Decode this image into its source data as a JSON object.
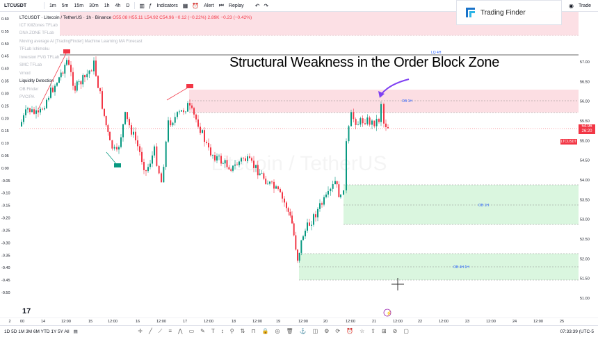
{
  "toolbar": {
    "symbol": "LTCUSDT",
    "timeframes": [
      "1m",
      "5m",
      "15m",
      "30m",
      "1h",
      "4h",
      "D"
    ],
    "indicators_label": "Indicators",
    "alert_label": "Alert",
    "replay_label": "Replay",
    "trade_label": "Trade"
  },
  "brand": {
    "name": "Trading Finder"
  },
  "legend": {
    "title": "LTCUSDT · Litecoin / TetherUS · 1h · Binance",
    "ohlc": "O55.08 H55.11 L54.92 C54.96 −0.12 (−0.22%)",
    "vol": "2.89K −0.23 (−0.42%)",
    "indicators": [
      {
        "label": "ICT KillZones TFLab",
        "on": false
      },
      {
        "label": "DNA ZONE TFLab",
        "on": false
      },
      {
        "label": "Moving average AI [TradingFinder] Machine Learning MA Forecast",
        "on": false
      },
      {
        "label": "TFLab Ichimoku",
        "on": false
      },
      {
        "label": "Inversion FVG TFLab",
        "on": false
      },
      {
        "label": "SMC TFLab",
        "on": false
      },
      {
        "label": "Vmod",
        "on": false
      },
      {
        "label": "Liquidity Detection",
        "on": true
      },
      {
        "label": "OB Finder",
        "on": false
      },
      {
        "label": "PVC/PA",
        "on": false
      }
    ]
  },
  "annotation": "Structural Weakness in the Order Block Zone",
  "watermark": "Litecoin / TetherUS",
  "zones": {
    "liq": "LQ 4H",
    "ob1": "OB 1H",
    "ob2": "OB 1H",
    "ob3": "OB 4H 1H"
  },
  "chart_data": {
    "type": "candlestick",
    "left_axis": {
      "min": -0.5,
      "max": 0.6,
      "ticks": [
        "0.60",
        "0.55",
        "0.50",
        "0.45",
        "0.40",
        "0.35",
        "0.30",
        "0.25",
        "0.20",
        "0.15",
        "0.10",
        "0.05",
        "0.00",
        "-0.05",
        "-0.10",
        "-0.15",
        "-0.20",
        "-0.25",
        "-0.30",
        "-0.35",
        "-0.40",
        "-0.45",
        "-0.50"
      ]
    },
    "right_axis": {
      "min": 51.0,
      "max": 57.0,
      "ticks": [
        "57.00",
        "56.50",
        "56.00",
        "55.50",
        "55.00",
        "54.50",
        "54.00",
        "53.50",
        "53.00",
        "52.50",
        "52.00",
        "51.50",
        "51.00"
      ]
    },
    "x_ticks": [
      "2",
      "00",
      "14",
      "12:00",
      "15",
      "12:00",
      "16",
      "12:00",
      "17",
      "12:00",
      "18",
      "12:00",
      "19",
      "12:00",
      "20",
      "12:00",
      "21",
      "12:00",
      "22",
      "12:00",
      "23",
      "12:00",
      "24",
      "12:00",
      "25"
    ],
    "last_price": "54.96",
    "countdown": "26:20",
    "price_label": "LTCUSDT",
    "bull_color": "#089981",
    "bear_color": "#f23645"
  },
  "bottom": {
    "ranges": "1D  5D  1M  3M  6M  YTD  1Y  5Y  All",
    "time": "07:33:39 (UTC-5"
  }
}
